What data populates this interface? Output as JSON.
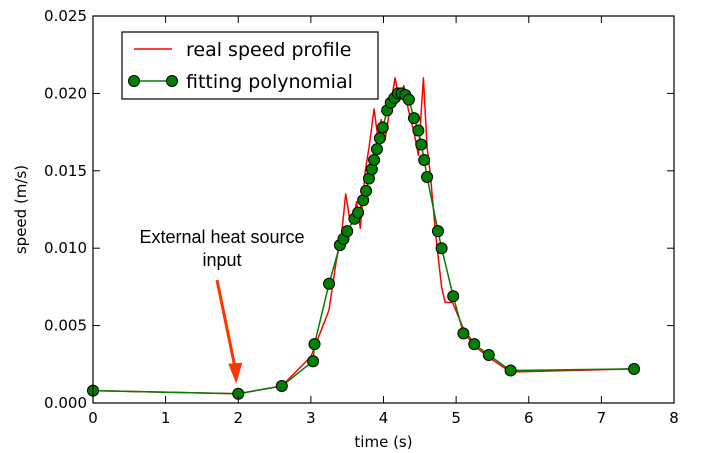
{
  "chart_data": {
    "type": "line",
    "xlabel": "time (s)",
    "ylabel": "speed (m/s)",
    "xlim": [
      0,
      8
    ],
    "ylim": [
      0,
      0.025
    ],
    "xticks": [
      "0",
      "1",
      "2",
      "3",
      "4",
      "5",
      "6",
      "7",
      "8"
    ],
    "yticks": [
      "0.000",
      "0.005",
      "0.010",
      "0.015",
      "0.020",
      "0.025"
    ],
    "grid": false,
    "legend_position": "top-left",
    "annotation": {
      "line1": "External heat source",
      "line2": "input",
      "x": 2.0,
      "y": 0.0006
    },
    "series": [
      {
        "name": "real speed profile",
        "color": "#ff0000",
        "marker": "none",
        "points": [
          [
            0.0,
            0.0008
          ],
          [
            2.0,
            0.0006
          ],
          [
            2.6,
            0.0011
          ],
          [
            3.0,
            0.003
          ],
          [
            3.25,
            0.006
          ],
          [
            3.35,
            0.0092
          ],
          [
            3.42,
            0.0108
          ],
          [
            3.48,
            0.0135
          ],
          [
            3.53,
            0.012
          ],
          [
            3.58,
            0.0117
          ],
          [
            3.63,
            0.013
          ],
          [
            3.68,
            0.0113
          ],
          [
            3.75,
            0.015
          ],
          [
            3.8,
            0.0165
          ],
          [
            3.87,
            0.019
          ],
          [
            3.92,
            0.0172
          ],
          [
            3.97,
            0.0183
          ],
          [
            4.02,
            0.017
          ],
          [
            4.08,
            0.0188
          ],
          [
            4.16,
            0.021
          ],
          [
            4.22,
            0.0195
          ],
          [
            4.28,
            0.0205
          ],
          [
            4.34,
            0.019
          ],
          [
            4.42,
            0.0175
          ],
          [
            4.48,
            0.016
          ],
          [
            4.55,
            0.021
          ],
          [
            4.6,
            0.0165
          ],
          [
            4.65,
            0.0145
          ],
          [
            4.72,
            0.0108
          ],
          [
            4.8,
            0.0075
          ],
          [
            4.85,
            0.0065
          ],
          [
            4.95,
            0.0065
          ],
          [
            5.1,
            0.0048
          ],
          [
            5.3,
            0.0035
          ],
          [
            5.5,
            0.0028
          ],
          [
            5.75,
            0.002
          ],
          [
            7.45,
            0.0022
          ]
        ]
      },
      {
        "name": "fitting polynomial",
        "color": "#008000",
        "marker": "circle",
        "points": [
          [
            0.0,
            0.0008
          ],
          [
            2.0,
            0.0006
          ],
          [
            2.6,
            0.0011
          ],
          [
            3.03,
            0.0027
          ],
          [
            3.05,
            0.0038
          ],
          [
            3.25,
            0.0077
          ],
          [
            3.4,
            0.0102
          ],
          [
            3.45,
            0.0106
          ],
          [
            3.5,
            0.0111
          ],
          [
            3.6,
            0.0119
          ],
          [
            3.65,
            0.0123
          ],
          [
            3.72,
            0.0131
          ],
          [
            3.76,
            0.0137
          ],
          [
            3.8,
            0.0145
          ],
          [
            3.84,
            0.0151
          ],
          [
            3.87,
            0.0157
          ],
          [
            3.91,
            0.0164
          ],
          [
            3.95,
            0.0171
          ],
          [
            3.99,
            0.0178
          ],
          [
            4.05,
            0.0189
          ],
          [
            4.1,
            0.0194
          ],
          [
            4.15,
            0.0197
          ],
          [
            4.2,
            0.02
          ],
          [
            4.25,
            0.02
          ],
          [
            4.3,
            0.0199
          ],
          [
            4.35,
            0.0196
          ],
          [
            4.42,
            0.0184
          ],
          [
            4.48,
            0.0176
          ],
          [
            4.52,
            0.0167
          ],
          [
            4.56,
            0.0157
          ],
          [
            4.6,
            0.0146
          ],
          [
            4.75,
            0.0111
          ],
          [
            4.8,
            0.01
          ],
          [
            4.96,
            0.0069
          ],
          [
            5.1,
            0.0045
          ],
          [
            5.25,
            0.0038
          ],
          [
            5.45,
            0.0031
          ],
          [
            5.75,
            0.0021
          ],
          [
            7.45,
            0.0022
          ]
        ]
      }
    ]
  }
}
